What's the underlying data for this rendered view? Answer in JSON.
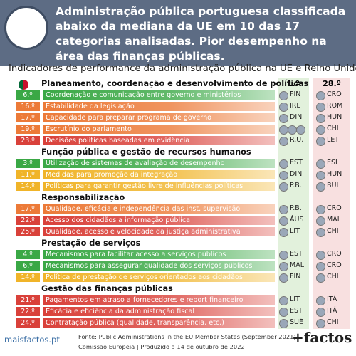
{
  "header": {
    "title": "Administração pública portuguesa classificada abaixo da mediana da UE em 10 das 17 categorias analisadas. Pior desempenho na área das finanças públicas."
  },
  "subtitle": "Indicadores de performance da administração pública na UE e Reino Unido",
  "columns": {
    "best": "1.º",
    "worst": "28.º"
  },
  "sections": [
    {
      "title": "Planeamento, coordenação e desenvolvimento de políticas",
      "rows": [
        {
          "rank": "6.º",
          "label": "Coordenação e comunicação entre governo e ministérios",
          "best": "FIN",
          "worst": "CRO",
          "color": "#3aa845"
        },
        {
          "rank": "16.º",
          "label": "Estabilidade da legislação",
          "best": "IRL",
          "worst": "ROM",
          "color": "#ec7a38"
        },
        {
          "rank": "17.º",
          "label": "Capacidade para preparar programa de governo",
          "best": "DIN",
          "worst": "HUN",
          "color": "#ec7a38"
        },
        {
          "rank": "19.º",
          "label": "Escrutínio do parlamento",
          "worst": "CHI",
          "color": "#ec7a38"
        },
        {
          "rank": "23.º",
          "label": "Decisões políticas baseadas em evidência",
          "best": "R.U.",
          "worst": "LET",
          "color": "#d9413a"
        }
      ]
    },
    {
      "title": "Função pública e gestão de recursos humanos",
      "rows": [
        {
          "rank": "3.º",
          "label": "Utilização de sistemas de avaliação de desempenho",
          "best": "EST",
          "worst": "ESL",
          "color": "#3aa845"
        },
        {
          "rank": "11.º",
          "label": "Medidas para promoção da integração",
          "best": "DIN",
          "worst": "HUN",
          "color": "#f0b429"
        },
        {
          "rank": "14.º",
          "label": "Políticas para garantir gestão livre de influências políticas",
          "best": "P.B.",
          "worst": "BUL",
          "color": "#f0b429"
        }
      ]
    },
    {
      "title": "Responsabilização",
      "rows": [
        {
          "rank": "17.º",
          "label": "Qualidade, eficácia e independência das inst. supervisão",
          "best": "P.B.",
          "worst": "CRO",
          "color": "#ec7a38"
        },
        {
          "rank": "22.º",
          "label": "Acesso dos cidadãos a informação pública",
          "best": "ÁUS",
          "worst": "MAL",
          "color": "#d9413a"
        },
        {
          "rank": "25.º",
          "label": "Qualidade, acesso e velocidade da justiça administrativa",
          "best": "LIT",
          "worst": "CHI",
          "color": "#d9413a"
        }
      ]
    },
    {
      "title": "Prestação de serviços",
      "rows": [
        {
          "rank": "4.º",
          "label": "Mecanismos para facilitar acesso a serviços públicos",
          "best": "EST",
          "worst": "CRO",
          "color": "#3aa845"
        },
        {
          "rank": "6.º",
          "label": "Mecanismos para assegurar qualidade dos serviços públicos",
          "best": "MAL",
          "worst": "CRO",
          "color": "#3aa845"
        },
        {
          "rank": "14.º",
          "label": "Política de prestação de serviços orientados aos cidadãos",
          "best": "FIN",
          "worst": "CHI",
          "color": "#f0b429"
        }
      ]
    },
    {
      "title": "Gestão das finanças públicas",
      "rows": [
        {
          "rank": "21.º",
          "label": "Pagamentos em atraso a fornecedores e report financeiro",
          "best": "LIT",
          "worst": "ITÁ",
          "color": "#d9413a"
        },
        {
          "rank": "22.º",
          "label": "Eficácia e eficiência da administração fiscal",
          "best": "EST",
          "worst": "ITÁ",
          "color": "#d9413a"
        },
        {
          "rank": "24.º",
          "label": "Contratação pública (qualidade, transparência, etc.)",
          "best": "SUÉ",
          "worst": "CHI",
          "color": "#d9413a"
        }
      ]
    }
  ],
  "footer": {
    "site": "maisfactos.pt",
    "source": "Fonte: Public Administrations in the EU Member States (September 2021).",
    "credit": "Comissão Europeia | Produzido a 14 de outubro de 2022",
    "logo": "+factos"
  }
}
